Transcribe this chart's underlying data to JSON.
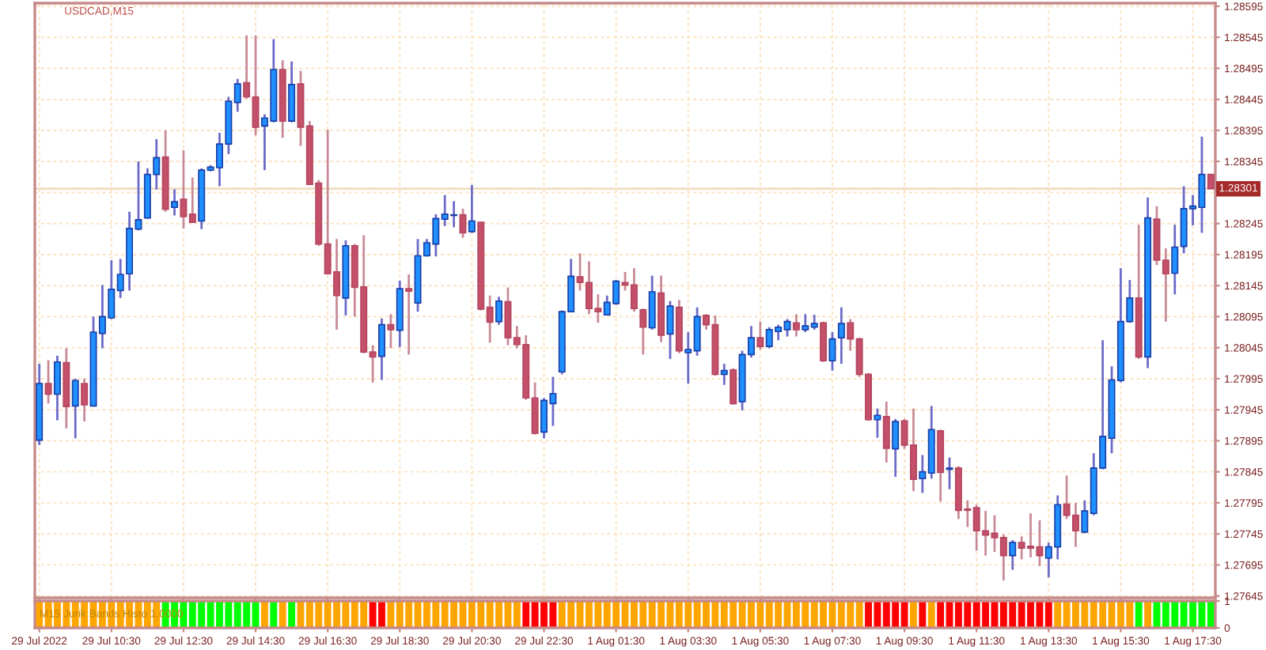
{
  "chart_data": [
    {
      "type": "candlestick",
      "title": "USDCAD,M15",
      "tick_labels": "y",
      "grid": true,
      "categories": [
        null,
        null,
        null,
        null,
        null,
        null,
        null,
        null,
        null,
        null,
        null,
        null,
        null,
        null,
        null,
        null,
        null,
        null,
        null,
        null,
        null,
        null,
        null,
        null,
        null,
        null,
        null,
        null,
        null,
        null,
        null,
        null,
        null,
        null,
        null,
        null,
        null,
        null,
        null,
        null,
        null,
        null,
        null,
        null,
        null,
        null,
        null,
        null,
        null,
        null,
        null,
        null,
        null,
        null,
        null,
        null,
        null,
        null,
        null,
        null,
        null,
        null,
        null,
        null,
        null,
        null,
        null,
        null,
        null,
        null,
        null,
        null,
        null,
        null,
        null,
        null,
        null,
        null,
        null,
        null,
        null,
        null,
        null,
        null,
        null,
        null,
        null,
        null,
        null,
        null,
        null,
        null,
        null,
        null,
        null,
        null,
        null,
        null,
        null,
        null,
        null,
        null,
        null,
        null,
        null,
        null,
        null,
        null,
        null,
        null,
        null,
        null,
        null,
        null,
        null,
        null,
        null,
        null,
        null,
        null,
        null,
        null,
        null,
        null,
        null,
        null,
        null,
        null,
        null,
        null,
        null
      ],
      "ylim": [
        1.27642,
        1.286
      ],
      "yticks": [
        1.28595,
        1.28545,
        1.28495,
        1.28445,
        1.28395,
        1.28345,
        {
          "value": 1.28295,
          "label": null
        },
        1.28245,
        1.28195,
        1.28145,
        1.28095,
        1.28045,
        1.27995,
        1.27945,
        1.27895,
        1.27845,
        1.27795,
        1.27745,
        1.27695,
        1.27645
      ],
      "ref_lines": [
        {
          "axis": "y",
          "value": 1.28301,
          "label": "1.28301",
          "color": "#f2dcc0"
        }
      ],
      "ohlc": [
        [
          1.27896,
          1.28019,
          1.27888,
          1.27987
        ],
        [
          1.27987,
          1.28025,
          1.27955,
          1.2797
        ],
        [
          1.2797,
          1.28032,
          1.27928,
          1.28022
        ],
        [
          1.28021,
          1.28044,
          1.27915,
          1.2795
        ],
        [
          1.27951,
          1.27995,
          1.27899,
          1.27992
        ],
        [
          1.27987,
          1.27995,
          1.27926,
          1.27953
        ],
        [
          1.27951,
          1.28095,
          1.2795,
          1.2807
        ],
        [
          1.28068,
          1.28146,
          1.28044,
          1.28095
        ],
        [
          1.28093,
          1.28186,
          1.28091,
          1.28139
        ],
        [
          1.28137,
          1.28188,
          1.28125,
          1.28163
        ],
        [
          1.28164,
          1.28264,
          1.28137,
          1.28237
        ],
        [
          1.28236,
          1.28345,
          1.28234,
          1.28251
        ],
        [
          1.28254,
          1.28334,
          1.28253,
          1.28324
        ],
        [
          1.28324,
          1.28381,
          1.283,
          1.28351
        ],
        [
          1.28352,
          1.28395,
          1.28264,
          1.28268
        ],
        [
          1.28271,
          1.283,
          1.28258,
          1.2828
        ],
        [
          1.28284,
          1.28363,
          1.28237,
          1.28256
        ],
        [
          1.2826,
          1.28319,
          1.28246,
          1.28247
        ],
        [
          1.28249,
          1.28334,
          1.28236,
          1.28331
        ],
        [
          1.28331,
          1.28339,
          1.28329,
          1.28336
        ],
        [
          1.28335,
          1.28391,
          1.28305,
          1.28373
        ],
        [
          1.28373,
          1.28449,
          1.28357,
          1.28442
        ],
        [
          1.2844,
          1.28478,
          1.28425,
          1.2847
        ],
        [
          1.28472,
          1.28548,
          1.28446,
          1.28449
        ],
        [
          1.28449,
          1.28548,
          1.28387,
          1.284
        ],
        [
          1.28402,
          1.28421,
          1.28331,
          1.28415
        ],
        [
          1.2841,
          1.28542,
          1.28408,
          1.28493
        ],
        [
          1.28493,
          1.28508,
          1.28383,
          1.2841
        ],
        [
          1.2841,
          1.28506,
          1.28408,
          1.28469
        ],
        [
          1.2847,
          1.28491,
          1.2837,
          1.284
        ],
        [
          1.28402,
          1.2841,
          1.28307,
          1.28308
        ],
        [
          1.2831,
          1.28315,
          1.28209,
          1.28212
        ],
        [
          1.28212,
          1.28396,
          1.28163,
          1.28164
        ],
        [
          1.28167,
          1.2822,
          1.28074,
          1.28129
        ],
        [
          1.28125,
          1.28218,
          1.28097,
          1.28209
        ],
        [
          1.28209,
          1.28212,
          1.28095,
          1.28142
        ],
        [
          1.28143,
          1.28226,
          1.28036,
          1.28038
        ],
        [
          1.28038,
          1.28049,
          1.27989,
          1.2803
        ],
        [
          1.28031,
          1.28092,
          1.27993,
          1.28082
        ],
        [
          1.28082,
          1.28099,
          1.28044,
          1.28074
        ],
        [
          1.28073,
          1.28153,
          1.28046,
          1.2814
        ],
        [
          1.2814,
          1.28163,
          1.28034,
          1.28136
        ],
        [
          1.28117,
          1.2822,
          1.28103,
          1.28193
        ],
        [
          1.28193,
          1.2822,
          1.28192,
          1.28214
        ],
        [
          1.28212,
          1.2826,
          1.28192,
          1.28253
        ],
        [
          1.28252,
          1.28291,
          1.28241,
          1.2826
        ],
        [
          1.28258,
          1.28281,
          1.28239,
          1.28259
        ],
        [
          1.28259,
          1.28269,
          1.28222,
          1.2823
        ],
        [
          1.28232,
          1.28307,
          1.2823,
          1.28249
        ],
        [
          1.28247,
          1.28247,
          1.28105,
          1.28107
        ],
        [
          1.2811,
          1.28129,
          1.28053,
          1.28086
        ],
        [
          1.28087,
          1.28127,
          1.28082,
          1.2812
        ],
        [
          1.28119,
          1.28142,
          1.28049,
          1.28061
        ],
        [
          1.28061,
          1.2808,
          1.28044,
          1.2805
        ],
        [
          1.2805,
          1.28065,
          1.27961,
          1.27964
        ],
        [
          1.27964,
          1.27989,
          1.27905,
          1.27907
        ],
        [
          1.27909,
          1.27964,
          1.27899,
          1.2796
        ],
        [
          1.27955,
          1.27998,
          1.27919,
          1.27971
        ],
        [
          1.28006,
          1.28105,
          1.28002,
          1.28103
        ],
        [
          1.28103,
          1.28188,
          1.28102,
          1.2816
        ],
        [
          1.28159,
          1.28197,
          1.28137,
          1.2815
        ],
        [
          1.2815,
          1.28184,
          1.28099,
          1.28108
        ],
        [
          1.28108,
          1.28131,
          1.28085,
          1.28103
        ],
        [
          1.28098,
          1.28129,
          1.28097,
          1.28118
        ],
        [
          1.28116,
          1.28154,
          1.28114,
          1.28152
        ],
        [
          1.2815,
          1.28167,
          1.28137,
          1.28146
        ],
        [
          1.28146,
          1.28173,
          1.28103,
          1.28108
        ],
        [
          1.28106,
          1.28108,
          1.28034,
          1.28078
        ],
        [
          1.28077,
          1.28161,
          1.28074,
          1.28135
        ],
        [
          1.28133,
          1.28161,
          1.28054,
          1.28065
        ],
        [
          1.28067,
          1.2812,
          1.28027,
          1.28112
        ],
        [
          1.2811,
          1.28122,
          1.28036,
          1.2804
        ],
        [
          1.28037,
          1.2807,
          1.27987,
          1.28042
        ],
        [
          1.2804,
          1.2811,
          1.28032,
          1.28095
        ],
        [
          1.28097,
          1.28099,
          1.28074,
          1.28082
        ],
        [
          1.28082,
          1.28097,
          1.28,
          1.28002
        ],
        [
          1.28002,
          1.28019,
          1.27985,
          1.28008
        ],
        [
          1.28009,
          1.28012,
          1.27953,
          1.27955
        ],
        [
          1.27958,
          1.2804,
          1.27944,
          1.28034
        ],
        [
          1.28034,
          1.2808,
          1.28029,
          1.28061
        ],
        [
          1.28061,
          1.28087,
          1.28042,
          1.28047
        ],
        [
          1.28047,
          1.28078,
          1.28044,
          1.28074
        ],
        [
          1.28071,
          1.28082,
          1.28057,
          1.28078
        ],
        [
          1.28074,
          1.28091,
          1.28063,
          1.28087
        ],
        [
          1.28085,
          1.28099,
          1.28063,
          1.28074
        ],
        [
          1.28074,
          1.28099,
          1.2807,
          1.2808
        ],
        [
          1.28078,
          1.28098,
          1.28074,
          1.28084
        ],
        [
          1.28085,
          1.28087,
          1.28022,
          1.28024
        ],
        [
          1.28024,
          1.2807,
          1.28008,
          1.28059
        ],
        [
          1.28061,
          1.2811,
          1.28019,
          1.28084
        ],
        [
          1.28085,
          1.28091,
          1.2804,
          1.28059
        ],
        [
          1.28059,
          1.28061,
          1.27998,
          1.28002
        ],
        [
          1.28002,
          1.28004,
          1.27927,
          1.27929
        ],
        [
          1.27929,
          1.27947,
          1.279,
          1.27936
        ],
        [
          1.27934,
          1.27958,
          1.2786,
          1.27883
        ],
        [
          1.27882,
          1.2793,
          1.27837,
          1.27926
        ],
        [
          1.27927,
          1.2793,
          1.27882,
          1.27888
        ],
        [
          1.27888,
          1.27947,
          1.27814,
          1.27833
        ],
        [
          1.27834,
          1.27872,
          1.27811,
          1.27845
        ],
        [
          1.27843,
          1.27951,
          1.27834,
          1.27913
        ],
        [
          1.27911,
          1.27913,
          1.27797,
          1.27844
        ],
        [
          1.27849,
          1.27868,
          1.27817,
          1.27851
        ],
        [
          1.27851,
          1.27854,
          1.27769,
          1.27783
        ],
        [
          1.27785,
          1.27799,
          1.27756,
          1.27783
        ],
        [
          1.27787,
          1.27792,
          1.27718,
          1.2775
        ],
        [
          1.2775,
          1.27782,
          1.2771,
          1.27743
        ],
        [
          1.27746,
          1.27775,
          1.27716,
          1.27739
        ],
        [
          1.27739,
          1.27744,
          1.2767,
          1.2771
        ],
        [
          1.2771,
          1.27735,
          1.27687,
          1.27731
        ],
        [
          1.27731,
          1.27741,
          1.27704,
          1.27722
        ],
        [
          1.27725,
          1.27778,
          1.27707,
          1.27722
        ],
        [
          1.27724,
          1.27767,
          1.27693,
          1.2771
        ],
        [
          1.27706,
          1.27731,
          1.27675,
          1.27724
        ],
        [
          1.27724,
          1.27807,
          1.27704,
          1.27792
        ],
        [
          1.27793,
          1.27839,
          1.27769,
          1.27775
        ],
        [
          1.27775,
          1.27795,
          1.27724,
          1.2775
        ],
        [
          1.27748,
          1.27799,
          1.27746,
          1.27782
        ],
        [
          1.27778,
          1.27875,
          1.27775,
          1.27851
        ],
        [
          1.27851,
          1.28057,
          1.27849,
          1.27902
        ],
        [
          1.27899,
          1.28015,
          1.27875,
          1.27993
        ],
        [
          1.27992,
          1.28173,
          1.27989,
          1.28087
        ],
        [
          1.28087,
          1.28154,
          1.28085,
          1.28125
        ],
        [
          1.28125,
          1.28243,
          1.28027,
          1.2803
        ],
        [
          1.2803,
          1.28287,
          1.28012,
          1.28254
        ],
        [
          1.28252,
          1.28273,
          1.28178,
          1.28186
        ],
        [
          1.28186,
          1.28205,
          1.28087,
          1.28164
        ],
        [
          1.28165,
          1.28243,
          1.28131,
          1.28207
        ],
        [
          1.28208,
          1.28305,
          1.28197,
          1.28269
        ],
        [
          1.28269,
          1.28291,
          1.28242,
          1.28273
        ],
        [
          1.28271,
          1.28385,
          1.2823,
          1.28324
        ],
        [
          1.28324,
          1.28324,
          1.28301,
          1.28301
        ]
      ]
    },
    {
      "type": "bar",
      "title": "M15 Jurik Bands Histo 1.0000",
      "grid": true,
      "categories": [
        "29 Jul 2022",
        null,
        null,
        null,
        null,
        null,
        null,
        null,
        "29 Jul 10:30",
        null,
        null,
        null,
        null,
        null,
        null,
        null,
        "29 Jul 12:30",
        null,
        null,
        null,
        null,
        null,
        null,
        null,
        "29 Jul 14:30",
        null,
        null,
        null,
        null,
        null,
        null,
        null,
        "29 Jul 16:30",
        null,
        null,
        null,
        null,
        null,
        null,
        null,
        "29 Jul 18:30",
        null,
        null,
        null,
        null,
        null,
        null,
        null,
        "29 Jul 20:30",
        null,
        null,
        null,
        null,
        null,
        null,
        null,
        "29 Jul 22:30",
        null,
        null,
        null,
        null,
        null,
        null,
        null,
        "1 Aug 01:30",
        null,
        null,
        null,
        null,
        null,
        null,
        null,
        "1 Aug 03:30",
        null,
        null,
        null,
        null,
        null,
        null,
        null,
        "1 Aug 05:30",
        null,
        null,
        null,
        null,
        null,
        null,
        null,
        "1 Aug 07:30",
        null,
        null,
        null,
        null,
        null,
        null,
        null,
        "1 Aug 09:30",
        null,
        null,
        null,
        null,
        null,
        null,
        null,
        "1 Aug 11:30",
        null,
        null,
        null,
        null,
        null,
        null,
        null,
        "1 Aug 13:30",
        null,
        null,
        null,
        null,
        null,
        null,
        null,
        "1 Aug 15:30",
        null,
        null,
        null,
        null,
        null,
        null,
        null,
        "1 Aug 17:30",
        null,
        null
      ],
      "ylim": [
        0,
        1
      ],
      "yticks": [
        1,
        0
      ],
      "values": [
        1,
        1,
        1,
        1,
        1,
        1,
        1,
        1,
        1,
        1,
        1,
        1,
        1,
        1,
        1,
        1,
        1,
        1,
        1,
        1,
        1,
        1,
        1,
        1,
        1,
        1,
        1,
        1,
        1,
        1,
        1,
        1,
        1,
        1,
        1,
        1,
        1,
        1,
        1,
        1,
        1,
        1,
        1,
        1,
        1,
        1,
        1,
        1,
        1,
        1,
        1,
        1,
        1,
        1,
        1,
        1,
        1,
        1,
        1,
        1,
        1,
        1,
        1,
        1,
        1,
        1,
        1,
        1,
        1,
        1,
        1,
        1,
        1,
        1,
        1,
        1,
        1,
        1,
        1,
        1,
        1,
        1,
        1,
        1,
        1,
        1,
        1,
        1,
        1,
        1,
        1,
        1,
        1,
        1,
        1,
        1,
        1,
        1,
        1,
        1,
        1,
        1,
        1,
        1,
        1,
        1,
        1,
        1,
        1,
        1,
        1,
        1,
        1,
        1,
        1,
        1,
        1,
        1,
        1,
        1,
        1,
        1,
        1,
        1,
        1,
        1,
        1,
        1,
        1,
        1,
        1
      ],
      "colors": [
        "#ffa500",
        "#ffa500",
        "#ffa500",
        "#ffa500",
        "#ffa500",
        "#ffa500",
        "#ffa500",
        "#ffa500",
        "#ffa500",
        "#ffa500",
        "#ffa500",
        "#ffa500",
        "#ffa500",
        "#ffa500",
        "#00ff00",
        "#00ff00",
        "#00ff00",
        "#00ff00",
        "#00ff00",
        "#00ff00",
        "#00ff00",
        "#00ff00",
        "#00ff00",
        "#00ff00",
        "#00ff00",
        "#ffa500",
        "#00ff00",
        "#ffa500",
        "#00ff00",
        "#ffa500",
        "#ffa500",
        "#ffa500",
        "#ffa500",
        "#ffa500",
        "#ffa500",
        "#ffa500",
        "#ffa500",
        "#ff0000",
        "#ff0000",
        "#ffa500",
        "#ffa500",
        "#ffa500",
        "#ffa500",
        "#ffa500",
        "#ffa500",
        "#ffa500",
        "#ffa500",
        "#ffa500",
        "#ffa500",
        "#ffa500",
        "#ffa500",
        "#ffa500",
        "#ffa500",
        "#ffa500",
        "#ff0000",
        "#ff0000",
        "#ff0000",
        "#ff0000",
        "#ffa500",
        "#ffa500",
        "#ffa500",
        "#ffa500",
        "#ffa500",
        "#ffa500",
        "#ffa500",
        "#ffa500",
        "#ffa500",
        "#ffa500",
        "#ffa500",
        "#ffa500",
        "#ffa500",
        "#ffa500",
        "#ffa500",
        "#ffa500",
        "#ffa500",
        "#ffa500",
        "#ffa500",
        "#ffa500",
        "#ffa500",
        "#ffa500",
        "#ffa500",
        "#ffa500",
        "#ffa500",
        "#ffa500",
        "#ffa500",
        "#ffa500",
        "#ffa500",
        "#ffa500",
        "#ffa500",
        "#ffa500",
        "#ffa500",
        "#ffa500",
        "#ff0000",
        "#ff0000",
        "#ff0000",
        "#ff0000",
        "#ff0000",
        "#ffa500",
        "#ff0000",
        "#ffa500",
        "#ff0000",
        "#ff0000",
        "#ff0000",
        "#ff0000",
        "#ff0000",
        "#ff0000",
        "#ff0000",
        "#ff0000",
        "#ff0000",
        "#ff0000",
        "#ff0000",
        "#ff0000",
        "#ff0000",
        "#ffa500",
        "#ffa500",
        "#ffa500",
        "#ffa500",
        "#ffa500",
        "#ffa500",
        "#ffa500",
        "#ffa500",
        "#ffa500",
        "#00ff00",
        "#ffa500",
        "#00ff00",
        "#00ff00",
        "#00ff00",
        "#00ff00",
        "#00ff00",
        "#00ff00",
        "#00ff00"
      ]
    }
  ]
}
